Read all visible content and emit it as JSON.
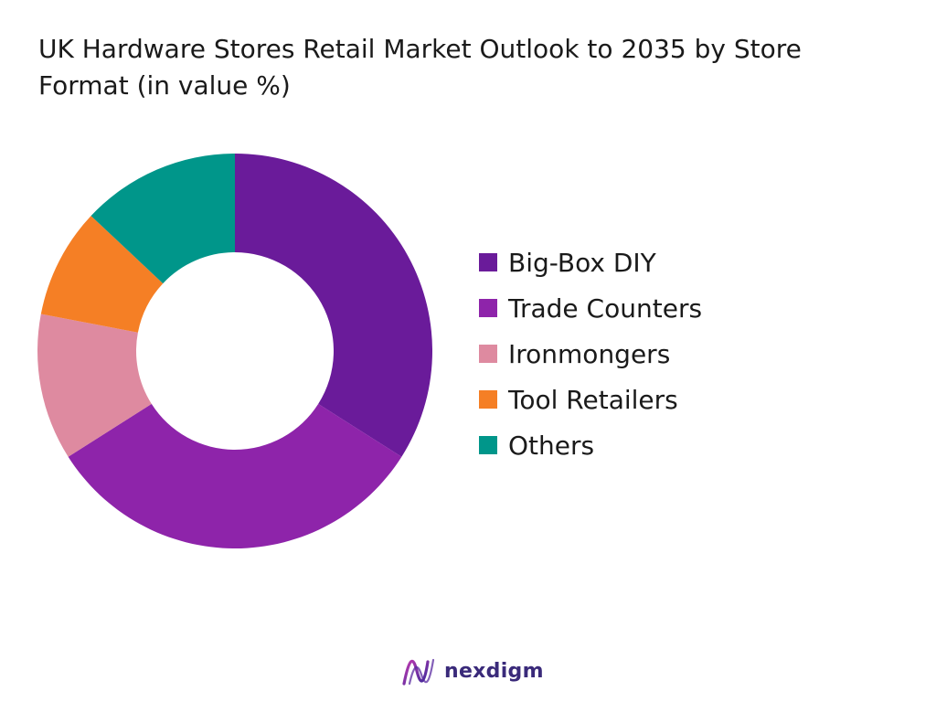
{
  "title": "UK Hardware Stores Retail Market Outlook to 2035 by Store Format (in value %)",
  "chart_data": {
    "type": "pie",
    "variant": "donut",
    "categories": [
      "Big-Box DIY",
      "Trade Counters",
      "Ironmongers",
      "Tool Retailers",
      "Others"
    ],
    "values": [
      34,
      32,
      12,
      9,
      13
    ],
    "colors": [
      "#6a1b9a",
      "#8e24aa",
      "#de8aa0",
      "#f57f25",
      "#00968a"
    ],
    "legend_position": "right"
  },
  "brand": {
    "name": "nexdigm",
    "logo_icon": "nexdigm-wave-logo-icon"
  }
}
